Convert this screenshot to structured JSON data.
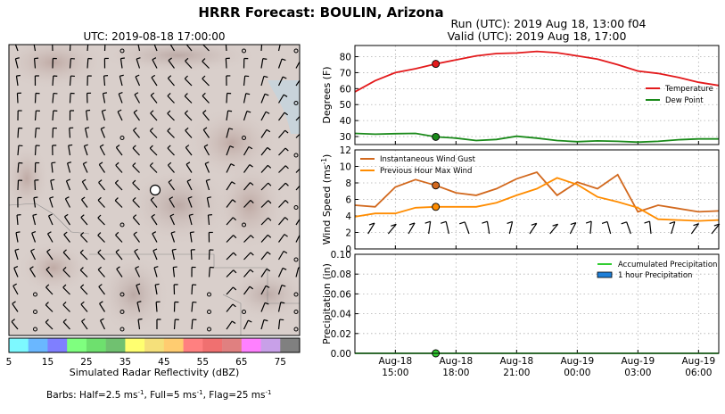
{
  "title": "HRRR Forecast: BOULIN, Arizona",
  "run_line": "Run (UTC): 2019 Aug 18, 13:00 f04",
  "valid_line": "Valid (UTC): 2019 Aug 18, 17:00",
  "map": {
    "title": "UTC: 2019-08-18 17:00:00",
    "colorbar_label": "Simulated Radar Reflectivity (dBZ)",
    "colorbar_ticks": [
      "5",
      "15",
      "25",
      "35",
      "45",
      "55",
      "65",
      "75"
    ],
    "colorbar_colors": [
      "#7df9ff",
      "#6ab7ff",
      "#7f7fff",
      "#7fff7f",
      "#6ee06e",
      "#70c170",
      "#ffff70",
      "#f5e07a",
      "#ffcc70",
      "#ff8080",
      "#f07070",
      "#e08080",
      "#ff80ff",
      "#c8a0e8",
      "#808080"
    ],
    "barbs_note": "Barbs: Half=2.5 ms",
    "barbs_note_mid": ", Full=5 ms",
    "barbs_note_end": ", Flag=25 ms",
    "superscript": "-1"
  },
  "chart_data": [
    {
      "type": "line",
      "ylabel": "Degrees (F)",
      "ylim": [
        25,
        87
      ],
      "yticks": [
        "30",
        "40",
        "50",
        "60",
        "70",
        "80"
      ],
      "x_hours": [
        13,
        14,
        15,
        16,
        17,
        18,
        19,
        20,
        21,
        22,
        23,
        24,
        25,
        26,
        27,
        28,
        29,
        30,
        31
      ],
      "series": [
        {
          "name": "Temperature",
          "color": "#e31a1c",
          "values": [
            58,
            65,
            70,
            72.5,
            75.5,
            78,
            80.5,
            82,
            82.3,
            83.3,
            82.5,
            80.5,
            78.5,
            75,
            71,
            69.5,
            67,
            64,
            62
          ]
        },
        {
          "name": "Dew Point",
          "color": "#1a8a1a",
          "values": [
            32,
            31.5,
            31.8,
            32,
            29.8,
            29,
            27.5,
            28.2,
            30.2,
            29,
            27.5,
            26.8,
            27.3,
            27,
            26.5,
            27,
            28,
            28.5,
            28.5
          ]
        }
      ],
      "marker_hour": 17,
      "legend": "lower right",
      "grid": true
    },
    {
      "type": "line",
      "ylabel": "Wind Speed (ms",
      "ylabel_sup": "-1",
      "ylabel_end": ")",
      "ylim": [
        0,
        12
      ],
      "yticks": [
        "0",
        "2",
        "4",
        "6",
        "8",
        "10",
        "12"
      ],
      "x_hours": [
        13,
        14,
        15,
        16,
        17,
        18,
        19,
        20,
        21,
        22,
        23,
        24,
        25,
        26,
        27,
        28,
        29,
        30,
        31
      ],
      "series": [
        {
          "name": "Instantaneous Wind Gust",
          "color": "#d2691e",
          "values": [
            5.3,
            5.1,
            7.5,
            8.4,
            7.7,
            6.8,
            6.5,
            7.3,
            8.5,
            9.3,
            6.5,
            8.1,
            7.3,
            9.0,
            4.5,
            5.3,
            4.9,
            4.5,
            4.6
          ]
        },
        {
          "name": "Previous Hour Max Wind",
          "color": "#ff8c00",
          "values": [
            3.9,
            4.3,
            4.3,
            5.0,
            5.1,
            5.1,
            5.1,
            5.6,
            6.5,
            7.3,
            8.6,
            7.8,
            6.3,
            5.7,
            5.0,
            3.6,
            3.5,
            3.4,
            3.5
          ]
        }
      ],
      "marker_hour": 17,
      "legend": "upper left",
      "grid": true
    },
    {
      "type": "line",
      "ylabel": "Precipitation (in)",
      "ylim": [
        0,
        0.1
      ],
      "yticks": [
        "0.00",
        "0.02",
        "0.04",
        "0.06",
        "0.08",
        "0.10"
      ],
      "x_hours": [
        13,
        14,
        15,
        16,
        17,
        18,
        19,
        20,
        21,
        22,
        23,
        24,
        25,
        26,
        27,
        28,
        29,
        30,
        31
      ],
      "series": [
        {
          "name": "Accumulated Precipitation",
          "color": "#32cd32",
          "values": [
            0,
            0,
            0,
            0,
            0,
            0,
            0,
            0,
            0,
            0,
            0,
            0,
            0,
            0,
            0,
            0,
            0,
            0,
            0
          ]
        },
        {
          "name": "1 hour Precipitation",
          "color": "#1e7fd8",
          "values": [
            0,
            0,
            0,
            0,
            0,
            0,
            0,
            0,
            0,
            0,
            0,
            0,
            0,
            0,
            0,
            0,
            0,
            0,
            0
          ]
        }
      ],
      "marker_hour": 17,
      "legend": "upper right",
      "grid": true,
      "xticks": [
        {
          "hour": 15,
          "line1": "Aug-18",
          "line2": "15:00"
        },
        {
          "hour": 18,
          "line1": "Aug-18",
          "line2": "18:00"
        },
        {
          "hour": 21,
          "line1": "Aug-18",
          "line2": "21:00"
        },
        {
          "hour": 24,
          "line1": "Aug-19",
          "line2": "00:00"
        },
        {
          "hour": 27,
          "line1": "Aug-19",
          "line2": "03:00"
        },
        {
          "hour": 30,
          "line1": "Aug-19",
          "line2": "06:00"
        }
      ]
    }
  ]
}
